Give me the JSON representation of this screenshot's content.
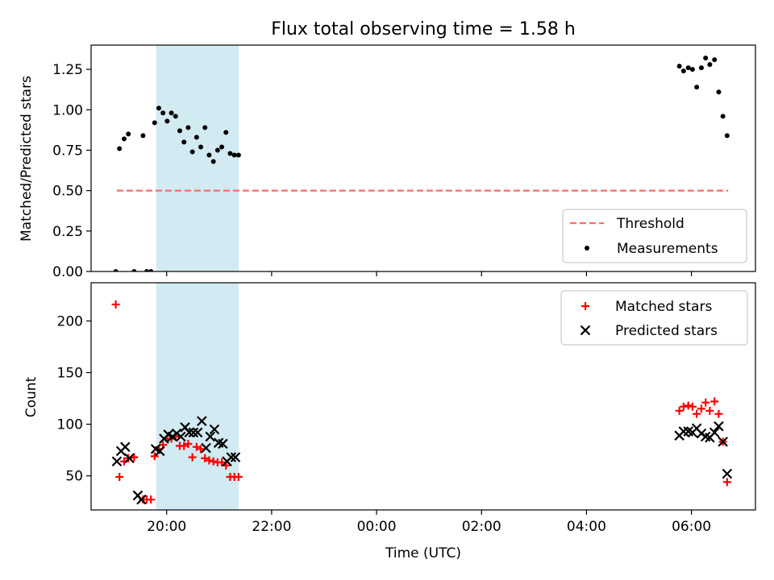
{
  "chart_data": [
    {
      "type": "scatter",
      "title": "Flux total observing time = 1.58 h",
      "xlabel": "",
      "ylabel": "Matched/Predicted stars",
      "ylim": [
        0,
        1.4
      ],
      "yticks": [
        "0.00",
        "0.25",
        "0.50",
        "0.75",
        "1.00",
        "1.25"
      ],
      "xlim": [
        18.56,
        31.22
      ],
      "highlight_span": [
        19.8,
        21.37
      ],
      "highlight_color": "#add8e6",
      "threshold": {
        "name": "Threshold",
        "value": 0.5,
        "x_from": 19.05,
        "x_to": 30.7,
        "color": "#ff6b6b"
      },
      "series": [
        {
          "name": "Measurements",
          "color": "#000000",
          "marker": "dot",
          "x": [
            19.03,
            19.1,
            19.19,
            19.27,
            19.38,
            19.55,
            19.62,
            19.7,
            19.77,
            19.85,
            19.93,
            20.01,
            20.09,
            20.17,
            20.25,
            20.33,
            20.41,
            20.49,
            20.57,
            20.65,
            20.73,
            20.81,
            20.89,
            20.97,
            21.05,
            21.13,
            21.21,
            21.29,
            21.37,
            29.77,
            29.85,
            29.94,
            30.02,
            30.1,
            30.19,
            30.27,
            30.35,
            30.44,
            30.52,
            30.6,
            30.68
          ],
          "y": [
            0.0,
            0.76,
            0.82,
            0.85,
            0.0,
            0.84,
            0.0,
            0.0,
            0.92,
            1.01,
            0.98,
            0.93,
            0.98,
            0.96,
            0.87,
            0.8,
            0.89,
            0.74,
            0.83,
            0.77,
            0.89,
            0.72,
            0.68,
            0.75,
            0.77,
            0.86,
            0.73,
            0.72,
            0.72,
            1.27,
            1.24,
            1.26,
            1.25,
            1.14,
            1.26,
            1.32,
            1.28,
            1.31,
            1.11,
            0.96,
            0.84
          ]
        }
      ]
    },
    {
      "type": "scatter",
      "title": "",
      "xlabel": "Time (UTC)",
      "ylabel": "Count",
      "ylim": [
        17,
        237
      ],
      "yticks": [
        "50",
        "100",
        "150",
        "200"
      ],
      "xlim": [
        18.56,
        31.22
      ],
      "xticks": [
        "20:00",
        "22:00",
        "00:00",
        "02:00",
        "04:00",
        "06:00"
      ],
      "xtick_hours": [
        20,
        22,
        24,
        26,
        28,
        30
      ],
      "highlight_span": [
        19.8,
        21.37
      ],
      "highlight_color": "#add8e6",
      "series": [
        {
          "name": "Matched stars",
          "color": "#ff0000",
          "marker": "plus",
          "x": [
            19.03,
            19.1,
            19.19,
            19.27,
            19.38,
            19.55,
            19.62,
            19.7,
            19.77,
            19.85,
            19.93,
            20.01,
            20.09,
            20.17,
            20.25,
            20.33,
            20.41,
            20.49,
            20.57,
            20.65,
            20.73,
            20.81,
            20.89,
            20.97,
            21.05,
            21.13,
            21.21,
            21.29,
            21.37,
            29.77,
            29.85,
            29.94,
            30.02,
            30.1,
            30.19,
            30.27,
            30.35,
            30.44,
            30.52,
            30.6,
            30.68
          ],
          "y": [
            216,
            49,
            64,
            67,
            68,
            27,
            27,
            27,
            69,
            76,
            80,
            86,
            86,
            88,
            79,
            79,
            81,
            68,
            78,
            76,
            67,
            65,
            64,
            63,
            63,
            60,
            49,
            49,
            49,
            113,
            117,
            118,
            117,
            110,
            115,
            121,
            113,
            122,
            110,
            83,
            44
          ]
        },
        {
          "name": "Predicted stars",
          "color": "#000000",
          "marker": "x",
          "x": [
            19.05,
            19.13,
            19.21,
            19.29,
            19.45,
            19.52,
            19.79,
            19.87,
            19.95,
            20.03,
            20.11,
            20.19,
            20.27,
            20.35,
            20.43,
            20.51,
            20.59,
            20.67,
            20.75,
            20.83,
            20.91,
            20.99,
            21.07,
            21.15,
            21.23,
            21.31,
            29.77,
            29.85,
            29.94,
            30.02,
            30.1,
            30.19,
            30.27,
            30.35,
            30.44,
            30.52,
            30.6,
            30.68
          ],
          "y": [
            64,
            74,
            78,
            67,
            31,
            27,
            76,
            74,
            86,
            90,
            88,
            91,
            88,
            97,
            92,
            92,
            92,
            103,
            77,
            88,
            95,
            82,
            81,
            64,
            68,
            68,
            89,
            93,
            93,
            92,
            96,
            91,
            88,
            87,
            92,
            98,
            83,
            52
          ]
        }
      ]
    }
  ]
}
